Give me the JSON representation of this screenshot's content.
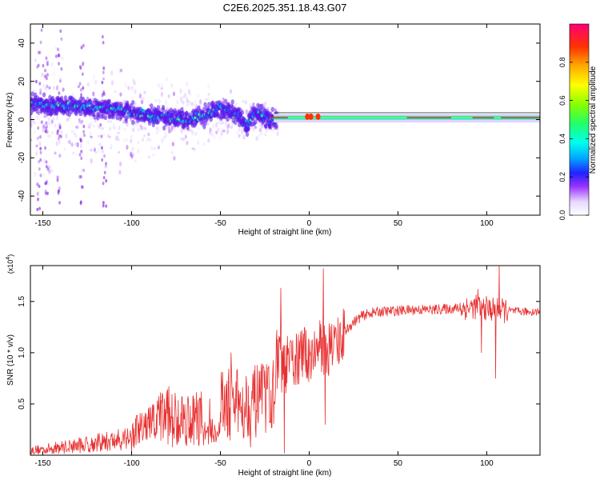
{
  "title": "C2E6.2025.351.18.43.G07",
  "chart_data": [
    {
      "type": "heatmap",
      "ylabel": "Frequency (Hz)",
      "xlabel": "Height of straight line (km)",
      "xlim": [
        -157,
        130
      ],
      "ylim": [
        -50,
        50
      ],
      "xticks": [
        "-150",
        "-100",
        "-50",
        "0",
        "50",
        "100"
      ],
      "xtick_values": [
        -150,
        -100,
        -50,
        0,
        50,
        100
      ],
      "yticks": [
        "40",
        "20",
        "0",
        "-20",
        "-40"
      ],
      "ytick_values": [
        40,
        20,
        0,
        -20,
        -40
      ],
      "colorbar": {
        "label": "Normalized spectral amplitude",
        "range": [
          0,
          1
        ],
        "ticks": [
          "0.0",
          "0.2",
          "0.4",
          "0.6",
          "0.8"
        ],
        "tick_values": [
          0.0,
          0.2,
          0.4,
          0.6,
          0.8
        ]
      },
      "ridge": {
        "x": [
          -157,
          -150,
          -140,
          -130,
          -120,
          -110,
          -100,
          -90,
          -80,
          -70,
          -60,
          -50,
          -45,
          -40,
          -35,
          -30,
          -25,
          -20,
          -10,
          0,
          10,
          20,
          40,
          60,
          80,
          100,
          120,
          130
        ],
        "freq": [
          8,
          8,
          7,
          7,
          6,
          6,
          4,
          2,
          1,
          0,
          2,
          6,
          4,
          2,
          -3,
          4,
          1,
          0,
          1,
          1,
          1,
          1,
          1,
          1,
          1,
          1,
          1,
          1
        ]
      }
    },
    {
      "type": "line",
      "ylabel": "SNR (10 * v/v)",
      "yscale_label": "(x10",
      "yscale_exp": "4",
      "xlabel": "Height of straight line (km)",
      "xlim": [
        -157,
        130
      ],
      "ylim": [
        0,
        1.85
      ],
      "xticks": [
        "-150",
        "-100",
        "-50",
        "0",
        "50",
        "100"
      ],
      "xtick_values": [
        -150,
        -100,
        -50,
        0,
        50,
        100
      ],
      "yticks": [
        "0.5",
        "1.0",
        "1.5"
      ],
      "ytick_values": [
        0.5,
        1.0,
        1.5
      ],
      "color": "#e83030",
      "series": [
        {
          "name": "SNR",
          "x": [
            -157,
            -145,
            -135,
            -125,
            -115,
            -105,
            -100,
            -95,
            -90,
            -85,
            -80,
            -75,
            -70,
            -65,
            -60,
            -55,
            -50,
            -45,
            -40,
            -35,
            -30,
            -25,
            -20,
            -15,
            -10,
            -5,
            0,
            5,
            8,
            10,
            15,
            20,
            25,
            30,
            35,
            40,
            50,
            60,
            70,
            80,
            90,
            95,
            100,
            105,
            110,
            120,
            130
          ],
          "values": [
            0.02,
            0.03,
            0.05,
            0.07,
            0.09,
            0.12,
            0.15,
            0.18,
            0.22,
            0.26,
            0.3,
            0.28,
            0.25,
            0.22,
            0.27,
            0.32,
            0.35,
            0.38,
            0.4,
            0.42,
            0.45,
            0.55,
            0.65,
            0.75,
            0.85,
            0.9,
            0.95,
            1.0,
            1.05,
            1.0,
            1.1,
            1.2,
            1.3,
            1.36,
            1.39,
            1.4,
            1.41,
            1.42,
            1.42,
            1.43,
            1.44,
            1.45,
            1.43,
            1.42,
            1.41,
            1.4,
            1.4
          ]
        }
      ],
      "spikes": [
        {
          "x": -100,
          "value": 0.02
        },
        {
          "x": -79,
          "value": 0.67
        },
        {
          "x": -77,
          "value": 0.08
        },
        {
          "x": -56,
          "value": 0.55
        },
        {
          "x": -44,
          "value": 1.0
        },
        {
          "x": -33,
          "value": 0.08
        },
        {
          "x": -16,
          "value": 1.63
        },
        {
          "x": -14,
          "value": 0.02
        },
        {
          "x": 8,
          "value": 1.82
        },
        {
          "x": 9,
          "value": 0.3
        },
        {
          "x": 95,
          "value": 1.62
        },
        {
          "x": 97,
          "value": 1.0
        },
        {
          "x": 105,
          "value": 0.75
        },
        {
          "x": 107,
          "value": 1.85
        }
      ]
    }
  ]
}
